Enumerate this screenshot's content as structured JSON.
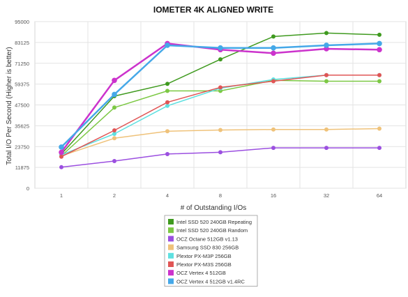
{
  "chart_data": {
    "type": "line",
    "title": "IOMETER 4K ALIGNED WRITE",
    "xlabel": "# of Outstanding I/Os",
    "ylabel": "Total I/O Per Second (Higher is better)",
    "x": [
      "1",
      "2",
      "4",
      "8",
      "16",
      "32",
      "64"
    ],
    "y_ticks": [
      "0",
      "11875",
      "23750",
      "35625",
      "47500",
      "59375",
      "71250",
      "83125",
      "95000"
    ],
    "ylim": [
      0,
      95000
    ],
    "grid": true,
    "legend_position": "bottom",
    "series": [
      {
        "name": "Intel SSD 520 240GB Repeating",
        "color": "#3f9a1f",
        "values": [
          19500,
          52500,
          59500,
          73500,
          86500,
          88500,
          87500
        ]
      },
      {
        "name": "Intel SSD 520 240GB Random",
        "color": "#7cc844",
        "values": [
          18500,
          46000,
          55500,
          55500,
          61500,
          61000,
          61000
        ]
      },
      {
        "name": "OCZ Octane 512GB v1.13",
        "color": "#9b4fe0",
        "values": [
          12000,
          15500,
          19500,
          20500,
          23000,
          23000,
          23000
        ]
      },
      {
        "name": "Samsung SSD 830 256GB",
        "color": "#efc27a",
        "values": [
          18500,
          28500,
          32500,
          33200,
          33500,
          33500,
          34000
        ]
      },
      {
        "name": "Plextor PX-M3P 256GB",
        "color": "#5ee0e0",
        "values": [
          19000,
          31000,
          47000,
          57000,
          62000,
          64500,
          64500
        ]
      },
      {
        "name": "Plextor PX-M3S 256GB",
        "color": "#e05555",
        "values": [
          18000,
          33000,
          49000,
          57500,
          61000,
          64500,
          64500
        ]
      },
      {
        "name": "OCZ Vertex 4 512GB",
        "color": "#cc33cc",
        "values": [
          20500,
          61500,
          82500,
          79000,
          77000,
          79500,
          79000
        ]
      },
      {
        "name": "OCZ Vertex 4 512GB v1.4RC",
        "color": "#45a8e8",
        "values": [
          23500,
          53500,
          81500,
          80000,
          80000,
          81500,
          82500
        ]
      }
    ]
  }
}
